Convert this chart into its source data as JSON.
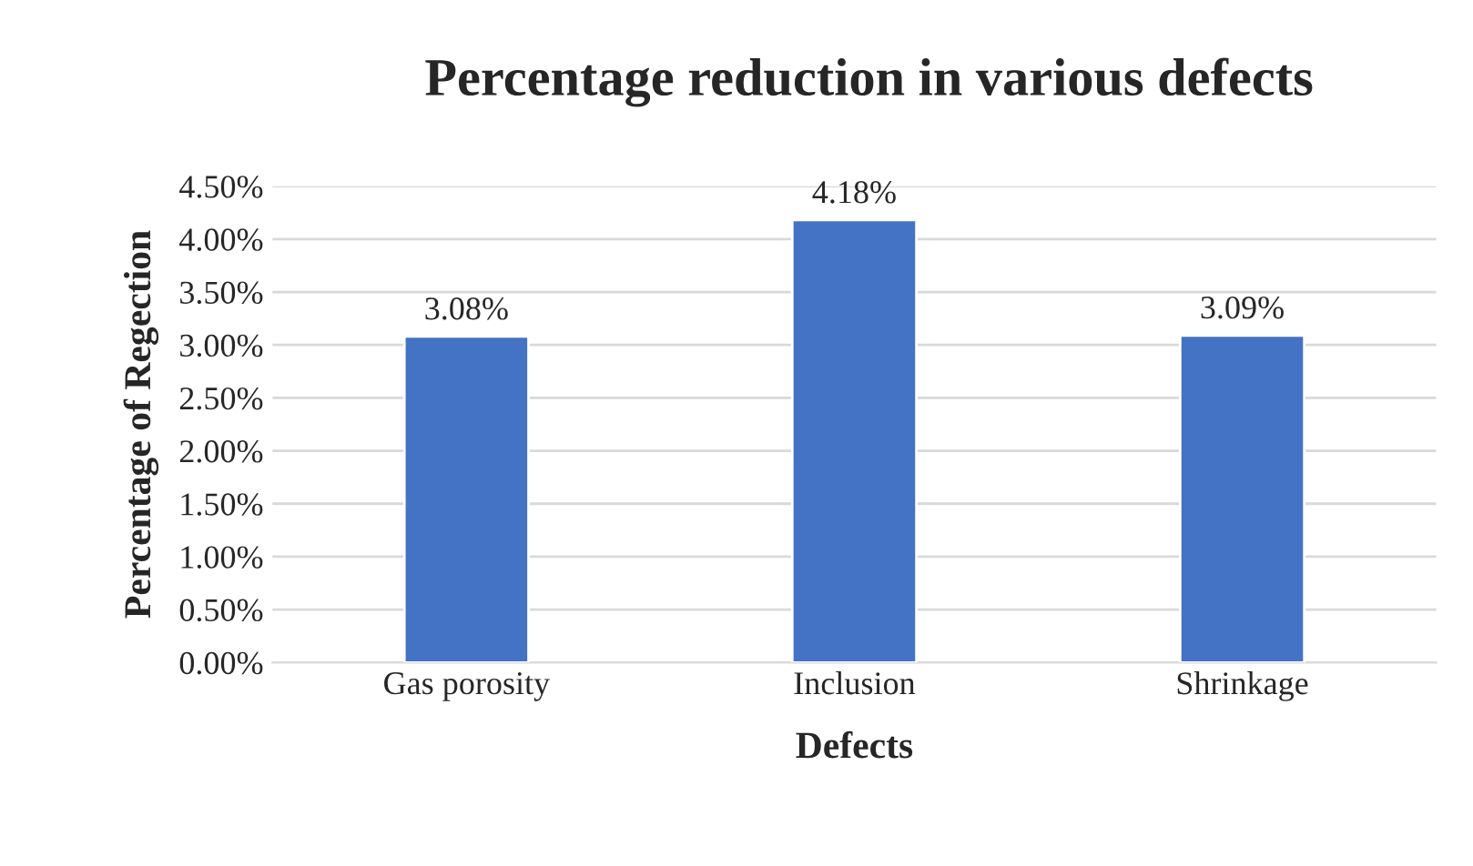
{
  "chart_data": {
    "type": "bar",
    "title": "Percentage reduction in various defects",
    "xlabel": "Defects",
    "ylabel": "Percentage of Regection",
    "categories": [
      "Gas porosity",
      "Inclusion",
      "Shrinkage"
    ],
    "values": [
      3.08,
      4.18,
      3.09
    ],
    "color": "#4472c4",
    "value_labels": [
      "3.08%",
      "4.18%",
      "3.09%"
    ],
    "ylim": [
      0,
      4.5
    ],
    "yticks": [
      {
        "value": 0,
        "label": "0.00%"
      },
      {
        "value": 0.5,
        "label": "0.50%"
      },
      {
        "value": 1,
        "label": "1.00%"
      },
      {
        "value": 1.5,
        "label": "1.50%"
      },
      {
        "value": 2,
        "label": "2.00%"
      },
      {
        "value": 2.5,
        "label": "2.50%"
      },
      {
        "value": 3,
        "label": "3.00%"
      },
      {
        "value": 3.5,
        "label": "3.50%"
      },
      {
        "value": 4,
        "label": "4.00%"
      },
      {
        "value": 4.5,
        "label": "4.50%"
      }
    ],
    "grid": "y",
    "legend": false
  }
}
